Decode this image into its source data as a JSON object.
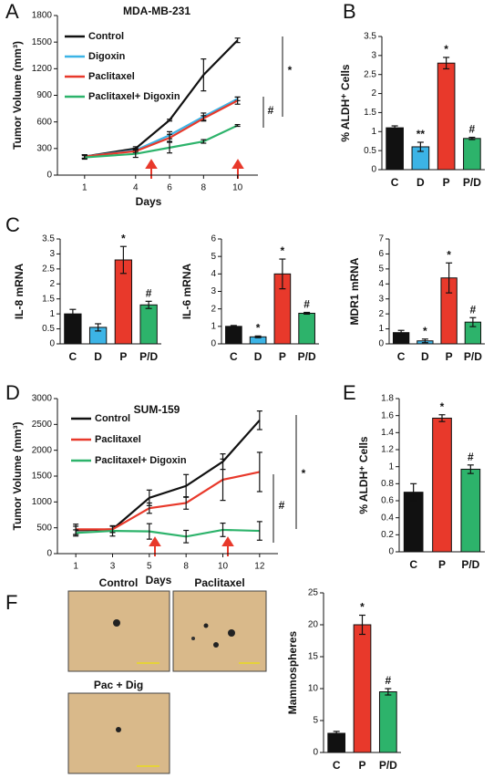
{
  "chart_data": [
    {
      "type": "line",
      "panel": "A",
      "title": "MDA-MB-231",
      "x_label": "Days",
      "y_label": "Tumor Volume (mm³)",
      "x": [
        1,
        4,
        6,
        8,
        10
      ],
      "xlim": [
        -0.6,
        11.2
      ],
      "xticks": [
        1,
        4,
        6,
        8,
        10
      ],
      "ylim": [
        0,
        1800
      ],
      "yticks": [
        0,
        300,
        600,
        900,
        1200,
        1500,
        1800
      ],
      "legend": "upper left",
      "series": [
        {
          "name": "Control",
          "color": "#111111",
          "values": [
            210,
            300,
            620,
            1130,
            1520
          ],
          "errors": [
            20,
            20,
            10,
            180,
            25
          ]
        },
        {
          "name": "Digoxin",
          "color": "#3cb4e6",
          "values": [
            210,
            280,
            450,
            660,
            860
          ],
          "errors": [
            20,
            20,
            40,
            40,
            20
          ]
        },
        {
          "name": "Paclitaxel",
          "color": "#e8392b",
          "values": [
            210,
            270,
            420,
            640,
            840
          ],
          "errors": [
            20,
            20,
            40,
            30,
            40
          ]
        },
        {
          "name": "Paclitaxel+ Digoxin",
          "color": "#2db36b",
          "values": [
            200,
            240,
            310,
            380,
            560
          ],
          "errors": [
            20,
            40,
            60,
            20,
            10
          ]
        }
      ],
      "annotations": [
        "*",
        "#"
      ]
    },
    {
      "type": "bar",
      "panel": "B",
      "y_label": "% ALDH⁺ Cells",
      "categories": [
        "C",
        "D",
        "P",
        "P/D"
      ],
      "values": [
        1.1,
        0.6,
        2.8,
        0.82
      ],
      "errors": [
        0.05,
        0.12,
        0.15,
        0.03
      ],
      "value_annotations": [
        null,
        "**",
        "*",
        "#"
      ],
      "colors": [
        "#111111",
        "#3cb4e6",
        "#e8392b",
        "#2db36b"
      ],
      "ylim": [
        0,
        3.5
      ],
      "yticks": [
        0,
        0.5,
        1,
        1.5,
        2,
        2.5,
        3,
        3.5
      ]
    },
    {
      "type": "bar",
      "panel": "C",
      "y_label": "IL-8 mRNA",
      "categories": [
        "C",
        "D",
        "P",
        "P/D"
      ],
      "values": [
        1.0,
        0.55,
        2.8,
        1.3
      ],
      "errors": [
        0.15,
        0.12,
        0.45,
        0.12
      ],
      "value_annotations": [
        null,
        null,
        "*",
        "#"
      ],
      "colors": [
        "#111111",
        "#3cb4e6",
        "#e8392b",
        "#2db36b"
      ],
      "ylim": [
        0,
        3.5
      ],
      "yticks": [
        0,
        0.5,
        1,
        1.5,
        2,
        2.5,
        3,
        3.5
      ]
    },
    {
      "type": "bar",
      "y_label": "IL-6 mRNA",
      "categories": [
        "C",
        "D",
        "P",
        "P/D"
      ],
      "values": [
        1.0,
        0.4,
        4.0,
        1.75
      ],
      "errors": [
        0.05,
        0.05,
        0.85,
        0.05
      ],
      "value_annotations": [
        null,
        "*",
        "*",
        "#"
      ],
      "colors": [
        "#111111",
        "#3cb4e6",
        "#e8392b",
        "#2db36b"
      ],
      "ylim": [
        0,
        6
      ],
      "yticks": [
        0,
        1,
        2,
        3,
        4,
        5,
        6
      ]
    },
    {
      "type": "bar",
      "y_label": "MDR1 mRNA",
      "categories": [
        "C",
        "D",
        "P",
        "P/D"
      ],
      "values": [
        0.75,
        0.2,
        4.4,
        1.45
      ],
      "errors": [
        0.15,
        0.12,
        1.0,
        0.3
      ],
      "value_annotations": [
        null,
        "*",
        "*",
        "#"
      ],
      "colors": [
        "#111111",
        "#3cb4e6",
        "#e8392b",
        "#2db36b"
      ],
      "ylim": [
        0,
        7
      ],
      "yticks": [
        0,
        1,
        2,
        3,
        4,
        5,
        6,
        7
      ]
    },
    {
      "type": "line",
      "panel": "D",
      "title": "SUM-159",
      "x_label": "Days",
      "y_label": "Tumor Volume (mm³)",
      "categories": [
        "1",
        "3",
        "5",
        "8",
        "10",
        "12"
      ],
      "ylim": [
        0,
        3000
      ],
      "yticks": [
        0,
        500,
        1000,
        1500,
        2000,
        2500,
        3000
      ],
      "legend": "upper left",
      "series": [
        {
          "name": "Control",
          "color": "#111111",
          "values": [
            450,
            470,
            1080,
            1310,
            1780,
            2580
          ],
          "errors": [
            80,
            60,
            150,
            220,
            150,
            180
          ]
        },
        {
          "name": "Paclitaxel",
          "color": "#e8392b",
          "values": [
            470,
            470,
            880,
            980,
            1430,
            1580
          ],
          "errors": [
            100,
            60,
            100,
            120,
            400,
            380
          ]
        },
        {
          "name": "Paclitaxel+ Digoxin",
          "color": "#2db36b",
          "values": [
            400,
            440,
            430,
            330,
            460,
            440
          ],
          "errors": [
            60,
            100,
            150,
            120,
            130,
            180
          ]
        }
      ],
      "annotations": [
        "*",
        "#"
      ]
    },
    {
      "type": "bar",
      "panel": "E",
      "y_label": "% ALDH⁺ Cells",
      "categories": [
        "C",
        "P",
        "P/D"
      ],
      "values": [
        0.7,
        1.57,
        0.97
      ],
      "errors": [
        0.1,
        0.04,
        0.05
      ],
      "value_annotations": [
        null,
        "*",
        "#"
      ],
      "colors": [
        "#111111",
        "#e8392b",
        "#2db36b"
      ],
      "ylim": [
        0,
        1.8
      ],
      "yticks": [
        0,
        0.2,
        0.4,
        0.6,
        0.8,
        1,
        1.2,
        1.4,
        1.6,
        1.8
      ]
    },
    {
      "type": "bar",
      "panel": "F",
      "y_label": "Mammospheres",
      "categories": [
        "C",
        "P",
        "P/D"
      ],
      "values": [
        3,
        20,
        9.5
      ],
      "errors": [
        0.3,
        1.5,
        0.5
      ],
      "value_annotations": [
        null,
        "*",
        "#"
      ],
      "colors": [
        "#111111",
        "#e8392b",
        "#2db36b"
      ],
      "ylim": [
        0,
        25
      ],
      "yticks": [
        0,
        5,
        10,
        15,
        20,
        25
      ]
    }
  ],
  "micrographs": {
    "labels": [
      "Control",
      "Paclitaxel",
      "Pac + Dig"
    ]
  }
}
